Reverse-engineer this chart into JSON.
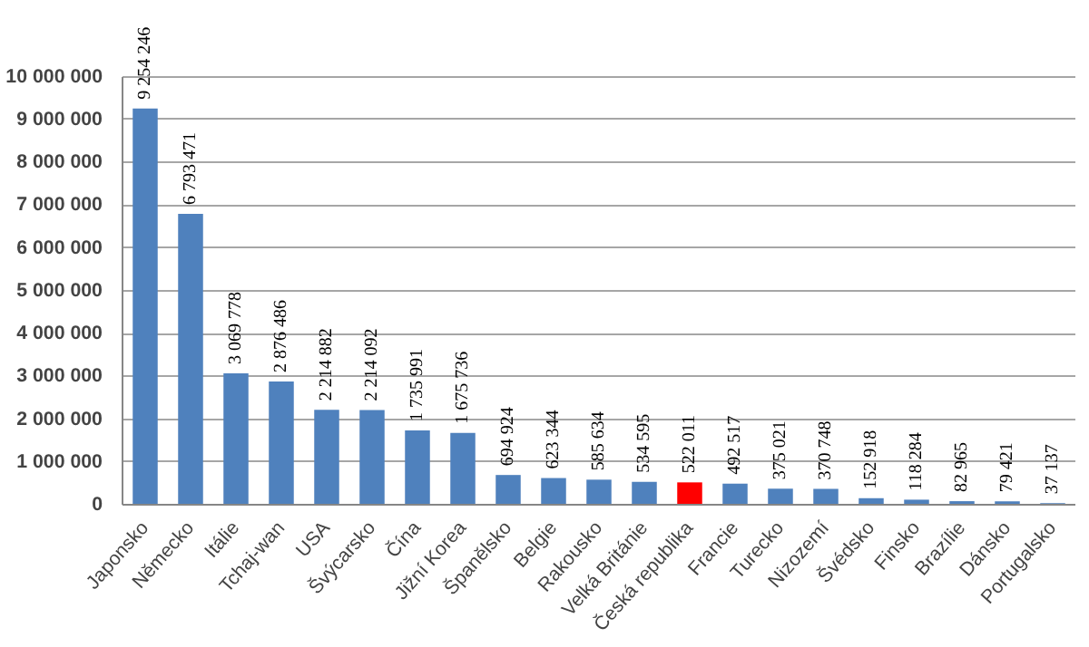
{
  "chart_data": {
    "type": "bar",
    "categories": [
      "Japonsko",
      "Německo",
      "Itálie",
      "Tchaj-wan",
      "USA",
      "Švýcarsko",
      "Čína",
      "Jižní Korea",
      "Španělsko",
      "Belgie",
      "Rakousko",
      "Velká Británie",
      "Česká republika",
      "Francie",
      "Turecko",
      "Nizozemí",
      "Švédsko",
      "Finsko",
      "Brazílie",
      "Dánsko",
      "Portugalsko"
    ],
    "values": [
      9254246,
      6793471,
      3069778,
      2876486,
      2214882,
      2214092,
      1735991,
      1675736,
      694924,
      623344,
      585634,
      534595,
      522011,
      492517,
      375021,
      370748,
      152918,
      118284,
      82965,
      79421,
      37137
    ],
    "value_labels": [
      "9 254 246",
      "6 793 471",
      "3 069 778",
      "2 876 486",
      "2 214 882",
      "2 214 092",
      "1 735 991",
      "1 675 736",
      "694 924",
      "623 344",
      "585 634",
      "534 595",
      "522 011",
      "492 517",
      "375 021",
      "370 748",
      "152 918",
      "118 284",
      "82 965",
      "79 421",
      "37 137"
    ],
    "colors": [
      "#4f81bd",
      "#4f81bd",
      "#4f81bd",
      "#4f81bd",
      "#4f81bd",
      "#4f81bd",
      "#4f81bd",
      "#4f81bd",
      "#4f81bd",
      "#4f81bd",
      "#4f81bd",
      "#4f81bd",
      "#ff0000",
      "#4f81bd",
      "#4f81bd",
      "#4f81bd",
      "#4f81bd",
      "#4f81bd",
      "#4f81bd",
      "#4f81bd",
      "#4f81bd"
    ],
    "ylim": [
      0,
      10000000
    ],
    "yticks": [
      {
        "value": 0,
        "label": "0"
      },
      {
        "value": 1000000,
        "label": "1 000 000"
      },
      {
        "value": 2000000,
        "label": "2 000 000"
      },
      {
        "value": 3000000,
        "label": "3 000 000"
      },
      {
        "value": 4000000,
        "label": "4 000 000"
      },
      {
        "value": 5000000,
        "label": "5 000 000"
      },
      {
        "value": 6000000,
        "label": "6 000 000"
      },
      {
        "value": 7000000,
        "label": "7 000 000"
      },
      {
        "value": 8000000,
        "label": "8 000 000"
      },
      {
        "value": 9000000,
        "label": "9 000 000"
      },
      {
        "value": 10000000,
        "label": "10 000 000"
      }
    ],
    "grid": "y"
  }
}
